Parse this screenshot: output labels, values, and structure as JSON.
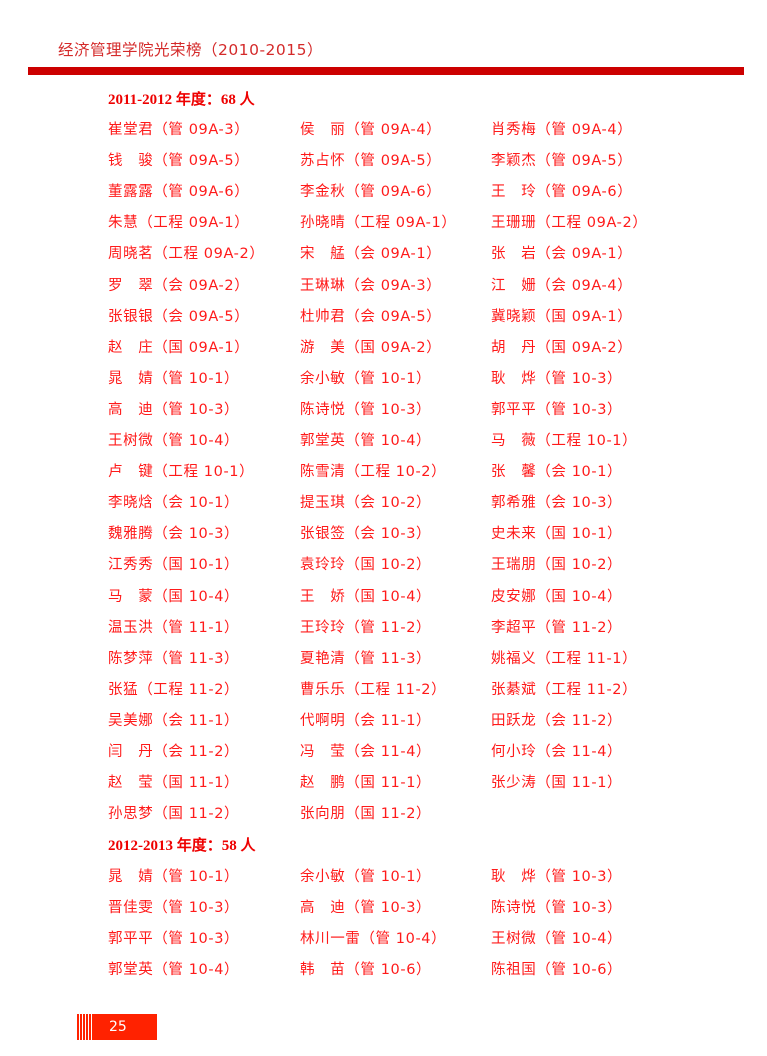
{
  "header": {
    "title": "经济管理学院光荣榜（2010-2015）"
  },
  "sections": [
    {
      "heading": "2011-2012 年度：68 人",
      "entries": [
        "崔堂君（管 09A-3）",
        "侯　丽（管 09A-4）",
        "肖秀梅（管 09A-4）",
        "钱　骏（管 09A-5）",
        "苏占怀（管 09A-5）",
        "李颖杰（管 09A-5）",
        "董露露（管 09A-6）",
        "李金秋（管 09A-6）",
        "王　玲（管 09A-6）",
        "朱慧（工程 09A-1）",
        "孙晓晴（工程 09A-1）",
        "王珊珊（工程 09A-2）",
        "周晓茗（工程 09A-2）",
        "宋　艋（会 09A-1）",
        "张　岩（会 09A-1）",
        "罗　翠（会 09A-2）",
        "王琳琳（会 09A-3）",
        "江　姗（会 09A-4）",
        "张银银（会 09A-5）",
        "杜帅君（会 09A-5）",
        "冀晓颖（国 09A-1）",
        "赵　庄（国 09A-1）",
        "游　美（国 09A-2）",
        "胡　丹（国 09A-2）",
        "晁　婧（管 10-1）",
        "余小敏（管 10-1）",
        "耿　烨（管 10-3）",
        "高　迪（管 10-3）",
        "陈诗悦（管 10-3）",
        "郭平平（管 10-3）",
        "王树微（管 10-4）",
        "郭堂英（管 10-4）",
        "马　薇（工程 10-1）",
        "卢　键（工程 10-1）",
        "陈雪清（工程 10-2）",
        "张　馨（会 10-1）",
        "李晓焓（会 10-1）",
        "提玉琪（会 10-2）",
        "郭希雅（会 10-3）",
        "魏雅腾（会 10-3）",
        "张银签（会 10-3）",
        "史未来（国 10-1）",
        "江秀秀（国 10-1）",
        "袁玲玲（国 10-2）",
        "王瑞朋（国 10-2）",
        "马　蒙（国 10-4）",
        "王　娇（国 10-4）",
        "皮安娜（国 10-4）",
        "温玉洪（管 11-1）",
        "王玲玲（管 11-2）",
        "李超平（管 11-2）",
        "陈梦萍（管 11-3）",
        "夏艳清（管 11-3）",
        "姚福义（工程 11-1）",
        "张猛（工程 11-2）",
        "曹乐乐（工程 11-2）",
        "张綦斌（工程 11-2）",
        "吴美娜（会 11-1）",
        "代啊明（会 11-1）",
        "田跃龙（会 11-2）",
        "闫　丹（会 11-2）",
        "冯　莹（会 11-4）",
        "何小玲（会 11-4）",
        "赵　莹（国 11-1）",
        "赵　鹏（国 11-1）",
        "张少涛（国 11-1）",
        "孙思梦（国 11-2）",
        "张向朋（国 11-2）"
      ]
    },
    {
      "heading": "2012-2013 年度：58 人",
      "entries": [
        "晁　婧（管 10-1）",
        "余小敏（管 10-1）",
        "耿　烨（管 10-3）",
        "晋佳雯（管 10-3）",
        "高　迪（管 10-3）",
        "陈诗悦（管 10-3）",
        "郭平平（管 10-3）",
        "林川一雷（管 10-4）",
        "王树微（管 10-4）",
        "郭堂英（管 10-4）",
        "韩　苗（管 10-6）",
        "陈祖国（管 10-6）"
      ]
    }
  ],
  "footer": {
    "page_number": "25"
  },
  "colors": {
    "accent": "#cc0000",
    "text": "#ff1a1a",
    "footer": "#ff2200"
  }
}
